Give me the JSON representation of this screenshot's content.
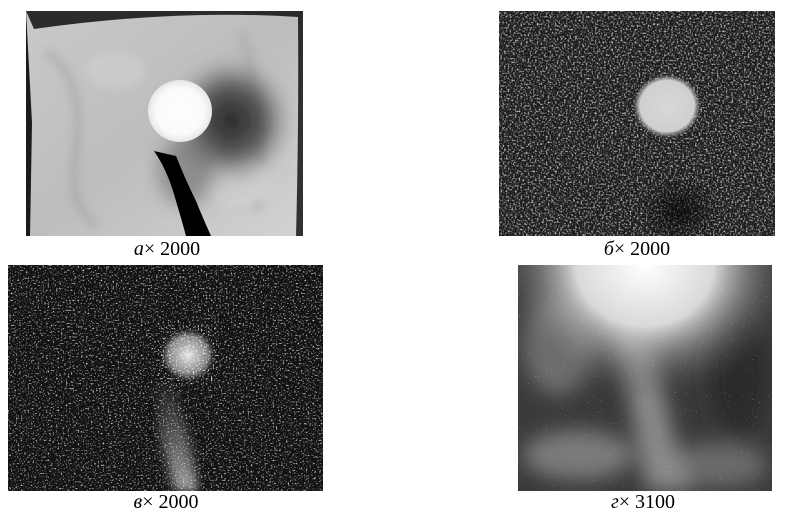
{
  "panels": [
    {
      "id": "a",
      "letter": "а",
      "magnification": "× 2000"
    },
    {
      "id": "b",
      "letter": "б",
      "magnification": "× 2000"
    },
    {
      "id": "v",
      "letter": "в",
      "magnification": "× 2000"
    },
    {
      "id": "g",
      "letter": "г",
      "magnification": "× 3100"
    }
  ]
}
